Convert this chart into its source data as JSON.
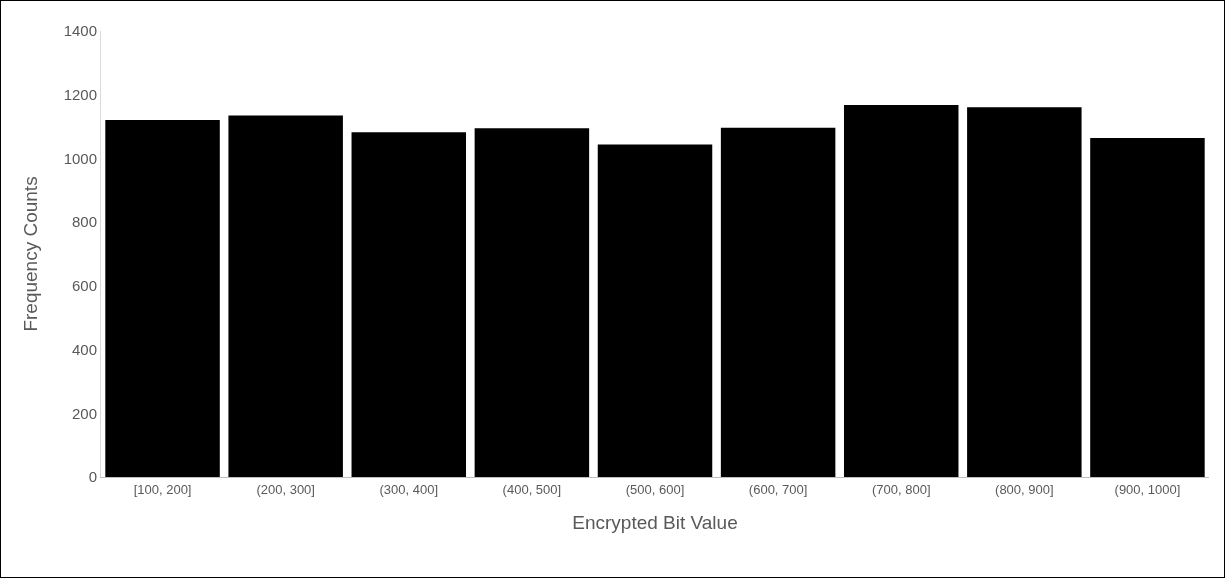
{
  "chart_data": {
    "type": "bar",
    "xlabel": "Encrypted Bit Value",
    "ylabel": "Frequency Counts",
    "categories": [
      "[100, 200]",
      "(200, 300]",
      "(300, 400]",
      "(400, 500]",
      "(500, 600]",
      "(600, 700]",
      "(700, 800]",
      "(800, 900]",
      "(900, 1000]"
    ],
    "values": [
      1121,
      1135,
      1082,
      1095,
      1044,
      1096,
      1168,
      1161,
      1064
    ],
    "color": "#000000",
    "ylim": [
      0,
      1400
    ],
    "yticks": [
      0,
      200,
      400,
      600,
      800,
      1000,
      1200,
      1400
    ],
    "grid": false,
    "legend": false
  }
}
